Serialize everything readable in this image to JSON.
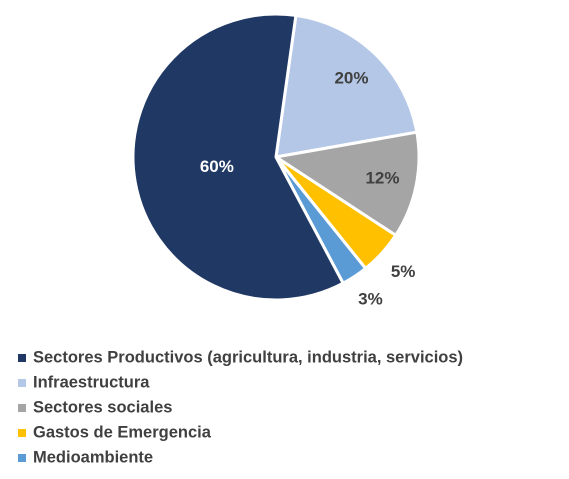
{
  "chart_data": {
    "type": "pie",
    "categories": [
      "Sectores Productivos (agricultura, industria, servicios)",
      "Infraestructura",
      "Sectores sociales",
      "Gastos de Emergencia",
      "Medioambiente"
    ],
    "values": [
      60,
      20,
      12,
      5,
      3
    ],
    "value_labels": [
      "60%",
      "20%",
      "12%",
      "5%",
      "3%"
    ],
    "colors": [
      "#203864",
      "#b4c7e7",
      "#a5a5a5",
      "#ffc000",
      "#5b9bd5"
    ],
    "legend": "bottom"
  }
}
